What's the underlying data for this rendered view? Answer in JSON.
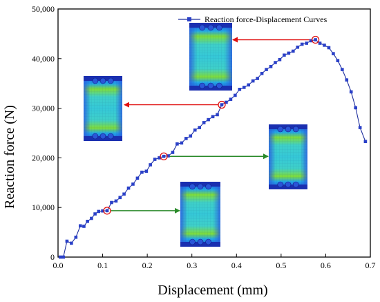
{
  "chart_data": {
    "type": "line",
    "title": "",
    "xlabel": "Displacement (mm)",
    "ylabel": "Reaction force (N)",
    "xlim": [
      0.0,
      0.7
    ],
    "ylim": [
      0,
      50000
    ],
    "x_ticks": [
      "0.0",
      "0.1",
      "0.2",
      "0.3",
      "0.4",
      "0.5",
      "0.6",
      "0.7"
    ],
    "y_ticks": [
      "0",
      "10,000",
      "20,000",
      "30,000",
      "40,000",
      "50,000"
    ],
    "grid": false,
    "legend_position": "top-right",
    "colors": {
      "series": "#1f2f9e",
      "marker": "#2a40c8",
      "highlight": "#e01010",
      "arrow_left": "#e01010",
      "arrow_right": "#2a8a2a"
    },
    "series": [
      {
        "name": "Reaction force-Displacement Curves",
        "points": [
          [
            0.005,
            0
          ],
          [
            0.012,
            0
          ],
          [
            0.02,
            3200
          ],
          [
            0.03,
            2800
          ],
          [
            0.04,
            4000
          ],
          [
            0.05,
            6300
          ],
          [
            0.058,
            6200
          ],
          [
            0.066,
            7200
          ],
          [
            0.075,
            7800
          ],
          [
            0.083,
            8700
          ],
          [
            0.091,
            9200
          ],
          [
            0.1,
            9300
          ],
          [
            0.11,
            9350
          ],
          [
            0.12,
            11000
          ],
          [
            0.13,
            11300
          ],
          [
            0.139,
            12000
          ],
          [
            0.148,
            12700
          ],
          [
            0.158,
            13900
          ],
          [
            0.168,
            14700
          ],
          [
            0.178,
            15900
          ],
          [
            0.188,
            17100
          ],
          [
            0.198,
            17300
          ],
          [
            0.207,
            18600
          ],
          [
            0.217,
            19700
          ],
          [
            0.227,
            20000
          ],
          [
            0.237,
            20300
          ],
          [
            0.247,
            20400
          ],
          [
            0.257,
            21100
          ],
          [
            0.267,
            22800
          ],
          [
            0.277,
            23000
          ],
          [
            0.287,
            23900
          ],
          [
            0.297,
            24400
          ],
          [
            0.307,
            25600
          ],
          [
            0.317,
            26100
          ],
          [
            0.327,
            27100
          ],
          [
            0.337,
            27700
          ],
          [
            0.347,
            28300
          ],
          [
            0.357,
            28700
          ],
          [
            0.367,
            30700
          ],
          [
            0.377,
            31200
          ],
          [
            0.387,
            31800
          ],
          [
            0.397,
            32600
          ],
          [
            0.407,
            33800
          ],
          [
            0.417,
            34200
          ],
          [
            0.427,
            34700
          ],
          [
            0.437,
            35500
          ],
          [
            0.447,
            36000
          ],
          [
            0.457,
            37000
          ],
          [
            0.467,
            37800
          ],
          [
            0.477,
            38400
          ],
          [
            0.487,
            39200
          ],
          [
            0.497,
            39800
          ],
          [
            0.507,
            40700
          ],
          [
            0.517,
            41100
          ],
          [
            0.527,
            41500
          ],
          [
            0.537,
            42300
          ],
          [
            0.547,
            42900
          ],
          [
            0.557,
            43100
          ],
          [
            0.567,
            43600
          ],
          [
            0.577,
            43800
          ],
          [
            0.587,
            43100
          ],
          [
            0.597,
            42700
          ],
          [
            0.607,
            42200
          ],
          [
            0.617,
            41000
          ],
          [
            0.627,
            39600
          ],
          [
            0.637,
            37800
          ],
          [
            0.647,
            35700
          ],
          [
            0.657,
            33300
          ],
          [
            0.667,
            30100
          ],
          [
            0.677,
            26100
          ],
          [
            0.689,
            23300
          ]
        ]
      }
    ],
    "highlighted_points": [
      {
        "x": 0.11,
        "y": 9350
      },
      {
        "x": 0.237,
        "y": 20300
      },
      {
        "x": 0.367,
        "y": 30700
      },
      {
        "x": 0.577,
        "y": 43800
      }
    ],
    "simulation_images": [
      {
        "name": "stress-contour-peak",
        "target_point": 3
      },
      {
        "name": "stress-contour-30k",
        "target_point": 2
      },
      {
        "name": "stress-contour-20k",
        "target_point": 1
      },
      {
        "name": "stress-contour-9k",
        "target_point": 0
      }
    ]
  }
}
